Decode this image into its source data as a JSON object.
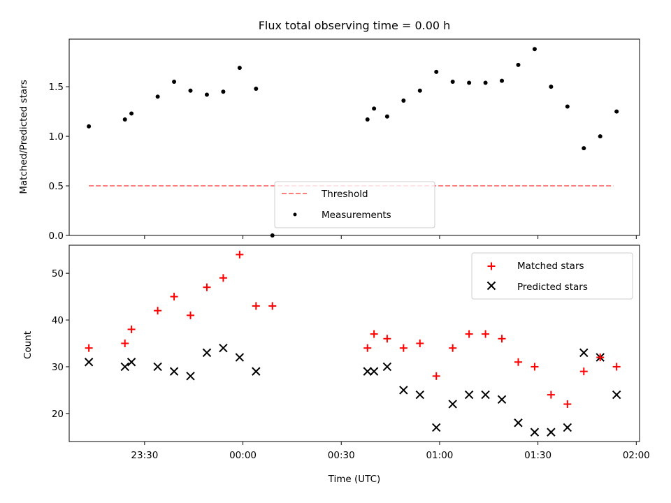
{
  "chart_data": [
    {
      "type": "scatter",
      "title": "Flux total observing time = 0.00 h",
      "xlabel": "",
      "ylabel": "Matched/Predicted stars",
      "ylim": [
        0,
        1.98
      ],
      "yticks": [
        0.0,
        0.5,
        1.0,
        1.5
      ],
      "ytick_labels": [
        "0.0",
        "0.5",
        "1.0",
        "1.5"
      ],
      "grid": false,
      "legend_position": "lower-center",
      "threshold": {
        "name": "Threshold",
        "value": 0.5,
        "x_start": "23:13",
        "x_end": "01:53",
        "color": "#ff7f7f",
        "style": "dashed"
      },
      "series": [
        {
          "name": "Measurements",
          "color": "#000000",
          "marker": "dot",
          "x": [
            "23:13",
            "23:24",
            "23:26",
            "23:34",
            "23:39",
            "23:44",
            "23:49",
            "23:54",
            "23:59",
            "00:04",
            "00:09",
            "00:38",
            "00:40",
            "00:44",
            "00:49",
            "00:54",
            "00:59",
            "01:04",
            "01:09",
            "01:14",
            "01:19",
            "01:24",
            "01:29",
            "01:34",
            "01:39",
            "01:44",
            "01:49",
            "01:54"
          ],
          "y": [
            1.1,
            1.17,
            1.23,
            1.4,
            1.55,
            1.46,
            1.42,
            1.45,
            1.69,
            1.48,
            0.0,
            1.17,
            1.28,
            1.2,
            1.36,
            1.46,
            1.65,
            1.55,
            1.54,
            1.54,
            1.56,
            1.72,
            1.88,
            1.5,
            1.3,
            0.88,
            1.0,
            1.25
          ]
        }
      ]
    },
    {
      "type": "scatter",
      "title": "",
      "xlabel": "Time (UTC)",
      "ylabel": "Count",
      "ylim": [
        14,
        56
      ],
      "yticks": [
        20,
        30,
        40,
        50
      ],
      "ytick_labels": [
        "20",
        "30",
        "40",
        "50"
      ],
      "xlim": [
        "23:07",
        "02:01"
      ],
      "xticks": [
        "23:30",
        "00:00",
        "00:30",
        "01:00",
        "01:30",
        "02:00"
      ],
      "xtick_labels": [
        "23:30",
        "00:00",
        "00:30",
        "01:00",
        "01:30",
        "02:00"
      ],
      "grid": false,
      "legend_position": "top-right",
      "series": [
        {
          "name": "Matched stars",
          "color": "#ff0000",
          "marker": "plus",
          "x": [
            "23:13",
            "23:24",
            "23:26",
            "23:34",
            "23:39",
            "23:44",
            "23:49",
            "23:54",
            "23:59",
            "00:04",
            "00:09",
            "00:38",
            "00:40",
            "00:44",
            "00:49",
            "00:54",
            "00:59",
            "01:04",
            "01:09",
            "01:14",
            "01:19",
            "01:24",
            "01:29",
            "01:34",
            "01:39",
            "01:44",
            "01:49",
            "01:54"
          ],
          "y": [
            34,
            35,
            38,
            42,
            45,
            41,
            47,
            49,
            54,
            43,
            43,
            34,
            37,
            36,
            34,
            35,
            28,
            34,
            37,
            37,
            36,
            31,
            30,
            24,
            22,
            29,
            32,
            30
          ]
        },
        {
          "name": "Predicted stars",
          "color": "#000000",
          "marker": "x",
          "x": [
            "23:13",
            "23:24",
            "23:26",
            "23:34",
            "23:39",
            "23:44",
            "23:49",
            "23:54",
            "23:59",
            "00:04",
            "00:38",
            "00:40",
            "00:44",
            "00:49",
            "00:54",
            "00:59",
            "01:04",
            "01:09",
            "01:14",
            "01:19",
            "01:24",
            "01:29",
            "01:34",
            "01:39",
            "01:44",
            "01:49",
            "01:54"
          ],
          "y": [
            31,
            30,
            31,
            30,
            29,
            28,
            33,
            34,
            32,
            29,
            29,
            29,
            30,
            25,
            24,
            17,
            22,
            24,
            24,
            23,
            18,
            16,
            16,
            17,
            33,
            32,
            24
          ]
        }
      ]
    }
  ]
}
